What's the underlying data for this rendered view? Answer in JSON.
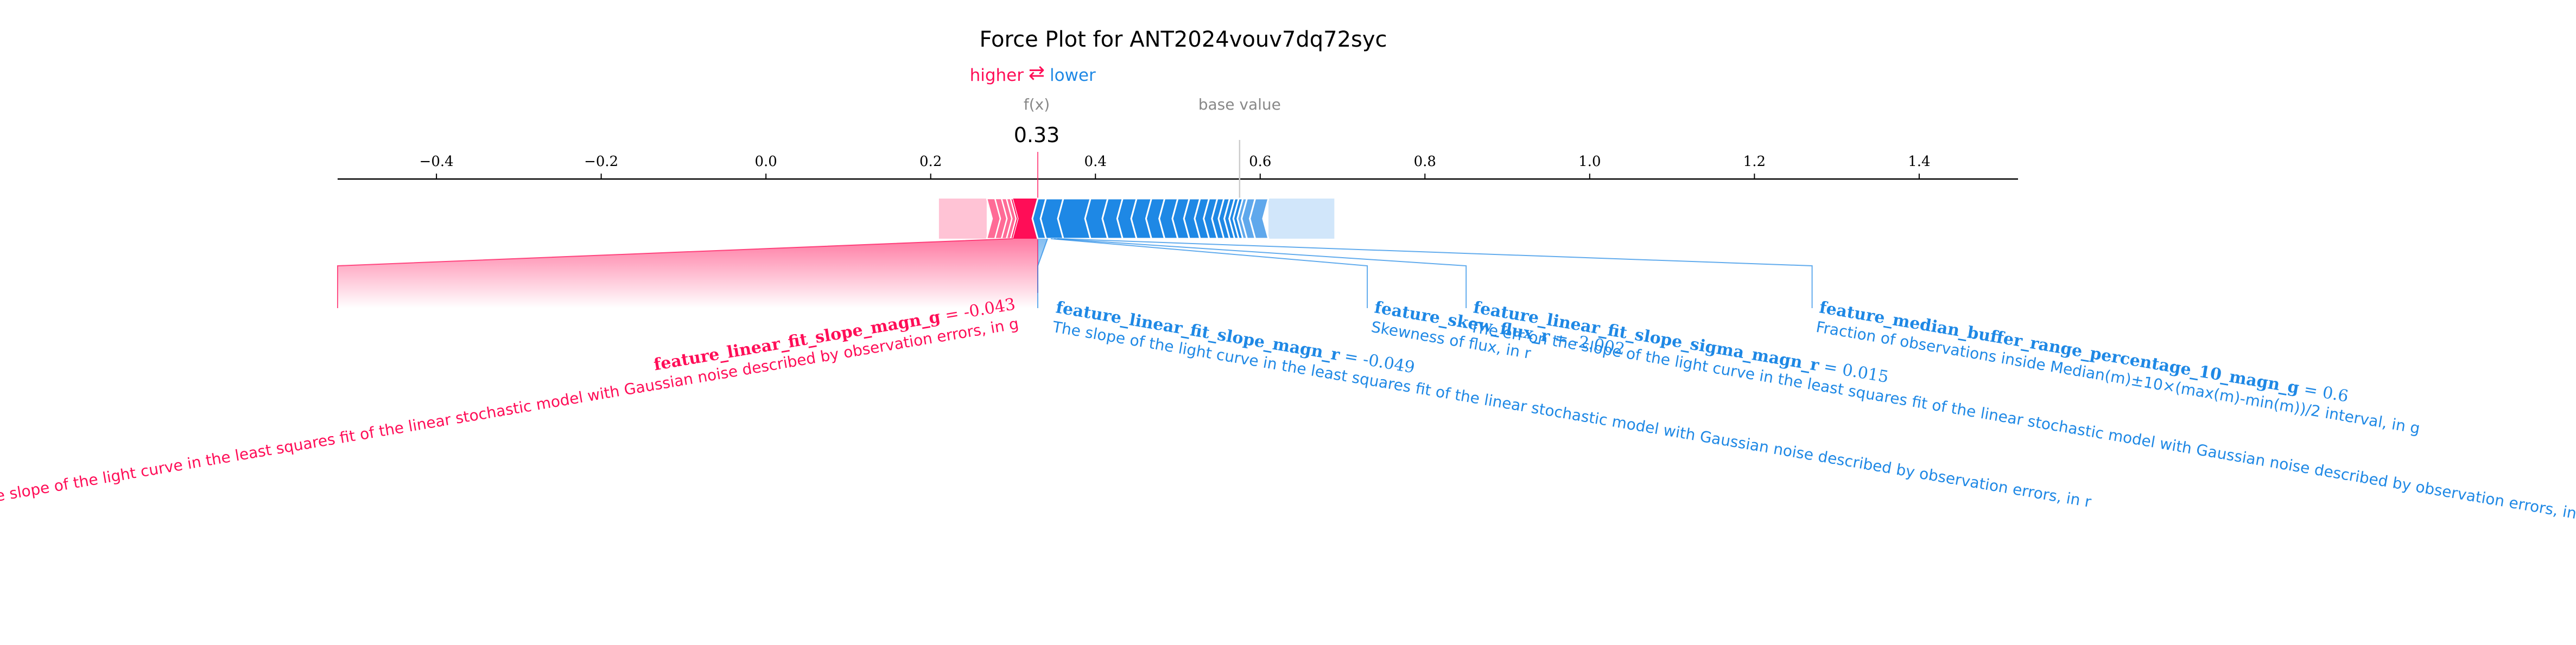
{
  "chart_data": {
    "type": "force",
    "title": "Force Plot for ANT2024vouv7dq72syc",
    "legend": {
      "higher": "higher",
      "arrows": "⇄",
      "lower": "lower"
    },
    "fx_label": "f(x)",
    "fx_value": 0.33,
    "fx_value_label": "0.33",
    "base_label": "base value",
    "base_value": 0.575,
    "xlim": [
      -0.52,
      1.52
    ],
    "ticks": [
      -0.4,
      -0.2,
      0.0,
      0.2,
      0.4,
      0.6,
      0.8,
      1.0,
      1.2,
      1.4
    ],
    "tick_labels": [
      "−0.4",
      "−0.2",
      "0.0",
      "0.2",
      "0.4",
      "0.6",
      "0.8",
      "1.0",
      "1.2",
      "1.4"
    ],
    "positive_segments": [
      0.21,
      0.268,
      0.278,
      0.286,
      0.292,
      0.297,
      0.3
    ],
    "negative_segments": [
      0.33,
      0.34,
      0.361,
      0.394,
      0.415,
      0.433,
      0.45,
      0.468,
      0.484,
      0.5,
      0.514,
      0.527,
      0.538,
      0.548,
      0.556,
      0.563,
      0.569,
      0.574,
      0.579,
      0.584,
      0.594,
      0.61,
      0.64,
      0.69
    ],
    "features": [
      {
        "name": "feature_linear_fit_slope_magn_g",
        "value": "-0.043",
        "description": "The slope of the light curve in the least squares fit of the linear stochastic model with Gaussian noise described by observation errors, in g",
        "effect": "positive",
        "axis_value": -0.52,
        "angle": -9.6
      },
      {
        "name": "feature_linear_fit_slope_magn_r",
        "value": "-0.049",
        "description": "The slope of the light curve in the least squares fit of the linear stochastic model with Gaussian noise described by observation errors, in r",
        "effect": "negative",
        "axis_value": 0.33,
        "angle": 9.6
      },
      {
        "name": "feature_skew_flux_r",
        "value": "-2.002",
        "description": "Skewness of flux, in r",
        "effect": "negative",
        "axis_value": 0.73,
        "angle": 9.6
      },
      {
        "name": "feature_linear_fit_slope_sigma_magn_r",
        "value": "0.015",
        "description": "The err on the slope of the light curve in the least squares fit of the linear stochastic model with Gaussian noise described by observation errors, in r",
        "effect": "negative",
        "axis_value": 0.85,
        "angle": 9.6
      },
      {
        "name": "feature_median_buffer_range_percentage_10_magn_g",
        "value": "0.6",
        "description": "Fraction of observations inside Median(m)±10×(max(m)-min(m))/2 interval, in g",
        "effect": "negative",
        "axis_value": 1.27,
        "angle": 9.6
      }
    ],
    "colors": {
      "positive": "#ff0d57",
      "negative": "#1e88e5",
      "positive_light": "#ffc3d5",
      "negative_light": "#d1e6fa",
      "positive_text": "#ff0d57",
      "negative_text": "#1e88e5"
    }
  }
}
